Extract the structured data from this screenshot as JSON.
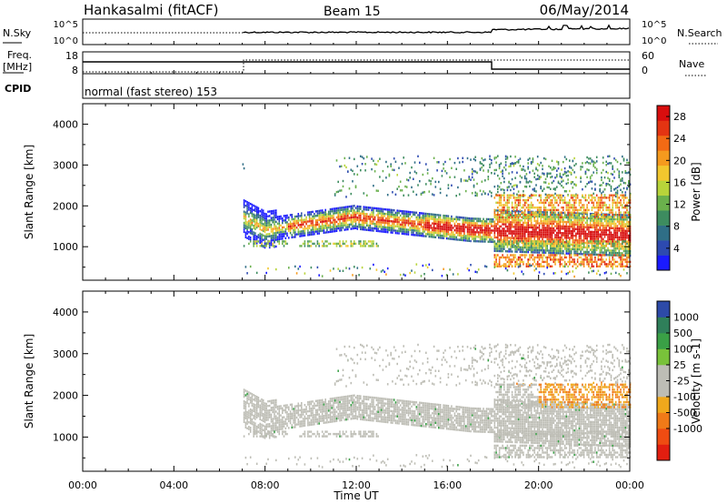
{
  "header": {
    "station": "Hankasalmi (fitACF)",
    "beam": "Beam 15",
    "date": "06/May/2014"
  },
  "noise_panel": {
    "left_label": "N.Sky",
    "right_label": "N.Search",
    "left_ticks": [
      "10^5",
      "10^0"
    ],
    "right_ticks": [
      "10^5",
      "10^0"
    ]
  },
  "freq_panel": {
    "left_label_1": "Freq.",
    "left_label_2": "[MHz]",
    "cpid_label": "CPID",
    "right_label": "Nave",
    "left_ticks": [
      "18",
      "8"
    ],
    "right_ticks": [
      "60",
      "0"
    ],
    "cpid_text": "normal (fast stereo) 153"
  },
  "chart_data": [
    {
      "type": "heatmap",
      "name": "power",
      "ylabel": "Slant Range [km]",
      "yticks": [
        "4000",
        "3000",
        "2000",
        "1000"
      ],
      "ylim": [
        180,
        4500
      ],
      "xlim": [
        "00:00",
        "24:00"
      ],
      "colorbar": {
        "label": "Power [dB]",
        "ticks": [
          "28",
          "24",
          "20",
          "16",
          "12",
          "8",
          "4"
        ],
        "range": [
          0,
          30
        ],
        "colors": [
          "#1a1aff",
          "#2d4ab0",
          "#2f6e86",
          "#3d8c5f",
          "#6ab04c",
          "#b8d43a",
          "#f2c72e",
          "#f59a1e",
          "#f26a14",
          "#e43412",
          "#d80e0e"
        ]
      }
    },
    {
      "type": "heatmap",
      "name": "velocity",
      "ylabel": "Slant Range [km]",
      "yticks": [
        "4000",
        "3000",
        "2000",
        "1000"
      ],
      "ylim": [
        180,
        4500
      ],
      "xlim": [
        "00:00",
        "24:00"
      ],
      "colorbar": {
        "label": "Velocity [m s-1]",
        "ticks": [
          "1000",
          "500",
          "100",
          "25",
          "-25",
          "-100",
          "-500",
          "-1000"
        ],
        "colors": [
          "#2d4aa8",
          "#2f7f5a",
          "#3aa046",
          "#79c23a",
          "#bdbdb5",
          "#bdbdb5",
          "#f0a81c",
          "#f07a18",
          "#ef4c12",
          "#e21e10"
        ]
      }
    }
  ],
  "xaxis": {
    "ticks": [
      "00:00",
      "04:00",
      "08:00",
      "12:00",
      "16:00",
      "20:00",
      "00:00"
    ],
    "label": "Time UT"
  }
}
